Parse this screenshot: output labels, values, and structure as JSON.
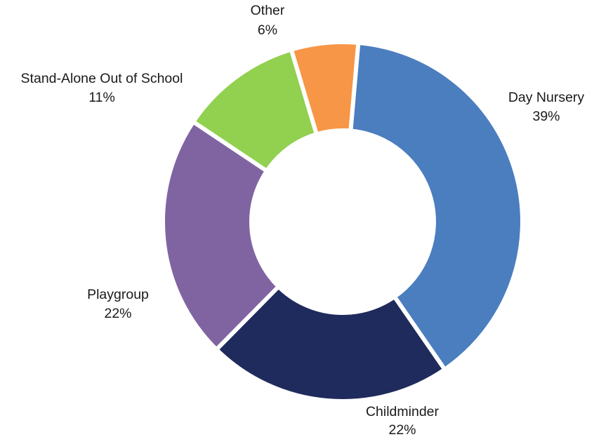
{
  "chart_data": {
    "type": "pie",
    "donut": true,
    "start_angle_deg": 5,
    "categories": [
      "Day Nursery",
      "Childminder",
      "Playgroup",
      "Stand-Alone Out of School",
      "Other"
    ],
    "values": [
      39,
      22,
      22,
      11,
      6
    ],
    "value_labels": [
      "39%",
      "22%",
      "22%",
      "11%",
      "6%"
    ],
    "colors": [
      "#4a7ebf",
      "#1f2b5c",
      "#8064a2",
      "#92d050",
      "#f79646"
    ],
    "legend": "none"
  }
}
